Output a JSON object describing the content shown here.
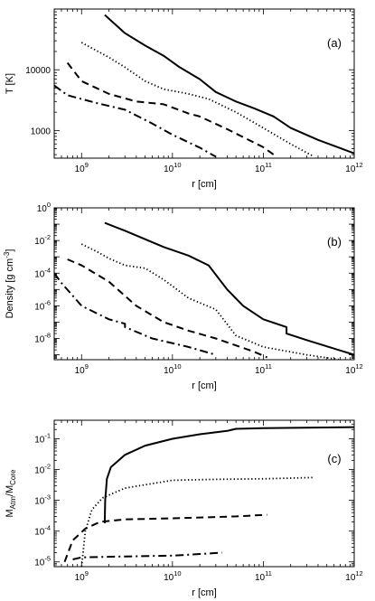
{
  "chart_data": [
    {
      "type": "line",
      "panel_label": "(a)",
      "xlabel": "r [cm]",
      "ylabel": "T [K]",
      "xscale": "log",
      "yscale": "log",
      "xlim": [
        500000000.0,
        1000000000000.0
      ],
      "ylim": [
        350,
        100000
      ],
      "x_tick_labels": [
        {
          "base": "10",
          "exp": "9",
          "value": 1000000000.0
        },
        {
          "base": "10",
          "exp": "10",
          "value": 10000000000.0
        },
        {
          "base": "10",
          "exp": "11",
          "value": 100000000000.0
        },
        {
          "base": "10",
          "exp": "12",
          "value": 1000000000000.0
        }
      ],
      "y_tick_labels": [
        {
          "text": "1000",
          "value": 1000
        },
        {
          "text": "10000",
          "value": 10000
        }
      ],
      "series": [
        {
          "style": "solid",
          "x": [
            1800000000.0,
            3000000000.0,
            5000000000.0,
            8000000000.0,
            12000000000.0,
            20000000000.0,
            30000000000.0,
            50000000000.0,
            80000000000.0,
            130000000000.0,
            200000000000.0,
            400000000000.0,
            1000000000000.0
          ],
          "y": [
            80000,
            40000,
            25000,
            17000,
            11000,
            7000,
            4300,
            3000,
            2300,
            1700,
            1100,
            700,
            420
          ]
        },
        {
          "style": "dotted",
          "x": [
            1000000000.0,
            2000000000.0,
            3000000000.0,
            5000000000.0,
            8000000000.0,
            15000000000.0,
            25000000000.0,
            50000000000.0,
            100000000000.0,
            200000000000.0,
            350000000000.0
          ],
          "y": [
            28000,
            16000,
            11000,
            6500,
            4800,
            4000,
            3300,
            2000,
            1100,
            600,
            380
          ]
        },
        {
          "style": "dashed",
          "x": [
            700000000.0,
            1000000000.0,
            2000000000.0,
            4000000000.0,
            8000000000.0,
            15000000000.0,
            20000000000.0,
            40000000000.0,
            100000000000.0,
            130000000000.0
          ],
          "y": [
            13000,
            6500,
            4000,
            3000,
            2700,
            1900,
            1700,
            1050,
            530,
            400
          ]
        },
        {
          "style": "dashdot",
          "x": [
            500000000.0,
            700000000.0,
            1500000000.0,
            3000000000.0,
            6000000000.0,
            10000000000.0,
            20000000000.0,
            30000000000.0
          ],
          "y": [
            5500,
            3800,
            2800,
            2200,
            1300,
            850,
            520,
            370
          ]
        }
      ]
    },
    {
      "type": "line",
      "panel_label": "(b)",
      "xlabel": "r [cm]",
      "ylabel": "Density [g cm^-3]",
      "ylabel_base": "Density [g cm",
      "ylabel_sup": "-3",
      "ylabel_tail": "]",
      "xscale": "log",
      "yscale": "log",
      "xlim": [
        500000000.0,
        1000000000000.0
      ],
      "ylim": [
        5e-10,
        1
      ],
      "x_tick_labels": [
        {
          "base": "10",
          "exp": "9",
          "value": 1000000000.0
        },
        {
          "base": "10",
          "exp": "10",
          "value": 10000000000.0
        },
        {
          "base": "10",
          "exp": "11",
          "value": 100000000000.0
        },
        {
          "base": "10",
          "exp": "12",
          "value": 1000000000000.0
        }
      ],
      "y_tick_labels": [
        {
          "base": "10",
          "exp": "0",
          "value": 1
        },
        {
          "base": "10",
          "exp": "-2",
          "value": 0.01
        },
        {
          "base": "10",
          "exp": "-4",
          "value": 0.0001
        },
        {
          "base": "10",
          "exp": "-6",
          "value": 1e-06
        },
        {
          "base": "10",
          "exp": "-8",
          "value": 1e-08
        }
      ],
      "series": [
        {
          "style": "solid",
          "x": [
            1800000000.0,
            3000000000.0,
            5000000000.0,
            8000000000.0,
            15000000000.0,
            25000000000.0,
            40000000000.0,
            60000000000.0,
            100000000000.0,
            180000000000.0,
            180000000000.0,
            300000000000.0,
            1000000000000.0
          ],
          "y": [
            0.12,
            0.04,
            0.012,
            0.004,
            0.0012,
            0.0003,
            1e-05,
            1e-06,
            1.5e-07,
            5e-08,
            2e-08,
            8e-09,
            1e-09
          ]
        },
        {
          "style": "dotted",
          "x": [
            1000000000.0,
            1500000000.0,
            2000000000.0,
            3000000000.0,
            5000000000.0,
            8000000000.0,
            15000000000.0,
            30000000000.0,
            50000000000.0,
            100000000000.0,
            300000000000.0,
            700000000000.0
          ],
          "y": [
            0.006,
            0.002,
            0.0008,
            0.0003,
            0.0002,
            4e-05,
            3e-06,
            6e-07,
            1.5e-08,
            3e-09,
            1e-09,
            5e-10
          ]
        },
        {
          "style": "dashed",
          "x": [
            700000000.0,
            1000000000.0,
            2000000000.0,
            4000000000.0,
            8000000000.0,
            15000000000.0,
            30000000000.0,
            80000000000.0,
            110000000000.0
          ],
          "y": [
            0.0007,
            0.0003,
            3e-05,
            1e-06,
            1e-07,
            3e-08,
            1e-08,
            1.5e-09,
            7e-10
          ]
        },
        {
          "style": "dashdot",
          "x": [
            500000000.0,
            600000000.0,
            1000000000.0,
            2000000000.0,
            3000000000.0,
            3000000000.0,
            6000000000.0,
            15000000000.0,
            30000000000.0
          ],
          "y": [
            0.0001,
            2.5e-05,
            1e-06,
            1.5e-07,
            8e-08,
            5e-08,
            1e-08,
            3e-09,
            1e-09
          ]
        }
      ]
    },
    {
      "type": "line",
      "panel_label": "(c)",
      "xlabel": "r [cm]",
      "ylabel": "M_Atm/M_Core",
      "ylabel_m1": "M",
      "ylabel_sub1": "Atm",
      "ylabel_sep": "/M",
      "ylabel_sub2": "Core",
      "xscale": "log",
      "yscale": "log",
      "xlim": [
        500000000.0,
        1000000000000.0
      ],
      "ylim": [
        7e-06,
        0.4
      ],
      "x_tick_labels": [
        {
          "base": "10",
          "exp": "9",
          "value": 1000000000.0
        },
        {
          "base": "10",
          "exp": "10",
          "value": 10000000000.0
        },
        {
          "base": "10",
          "exp": "11",
          "value": 100000000000.0
        },
        {
          "base": "10",
          "exp": "12",
          "value": 1000000000000.0
        }
      ],
      "y_tick_labels": [
        {
          "base": "10",
          "exp": "-1",
          "value": 0.1
        },
        {
          "base": "10",
          "exp": "-2",
          "value": 0.01
        },
        {
          "base": "10",
          "exp": "-3",
          "value": 0.001
        },
        {
          "base": "10",
          "exp": "-4",
          "value": 0.0001
        },
        {
          "base": "10",
          "exp": "-5",
          "value": 1e-05
        }
      ],
      "series": [
        {
          "style": "solid",
          "x": [
            1800000000.0,
            1820000000.0,
            1900000000.0,
            2100000000.0,
            3000000000.0,
            5000000000.0,
            10000000000.0,
            20000000000.0,
            40000000000.0,
            50000000000.0,
            100000000000.0,
            1000000000000.0
          ],
          "y": [
            0.00018,
            0.001,
            0.005,
            0.012,
            0.03,
            0.06,
            0.1,
            0.14,
            0.18,
            0.21,
            0.22,
            0.24
          ]
        },
        {
          "style": "dotted",
          "x": [
            1000000000.0,
            1100000000.0,
            1300000000.0,
            1700000000.0,
            3000000000.0,
            6000000000.0,
            10000000000.0,
            30000000000.0,
            100000000000.0,
            350000000000.0
          ],
          "y": [
            7e-06,
            0.0001,
            0.0005,
            0.0012,
            0.0025,
            0.0035,
            0.0045,
            0.0048,
            0.005,
            0.0055
          ]
        },
        {
          "style": "dashed",
          "x": [
            650000000.0,
            800000000.0,
            1100000000.0,
            1600000000.0,
            3000000000.0,
            10000000000.0,
            50000000000.0,
            110000000000.0
          ],
          "y": [
            1e-05,
            5e-05,
            0.00012,
            0.0002,
            0.00024,
            0.00026,
            0.0003,
            0.00034
          ]
        },
        {
          "style": "dashdot",
          "x": [
            800000000.0,
            1000000000.0,
            3000000000.0,
            10000000000.0,
            20000000000.0,
            35000000000.0
          ],
          "y": [
            1.2e-05,
            1.4e-05,
            1.5e-05,
            1.6e-05,
            1.8e-05,
            2e-05
          ]
        }
      ]
    }
  ]
}
